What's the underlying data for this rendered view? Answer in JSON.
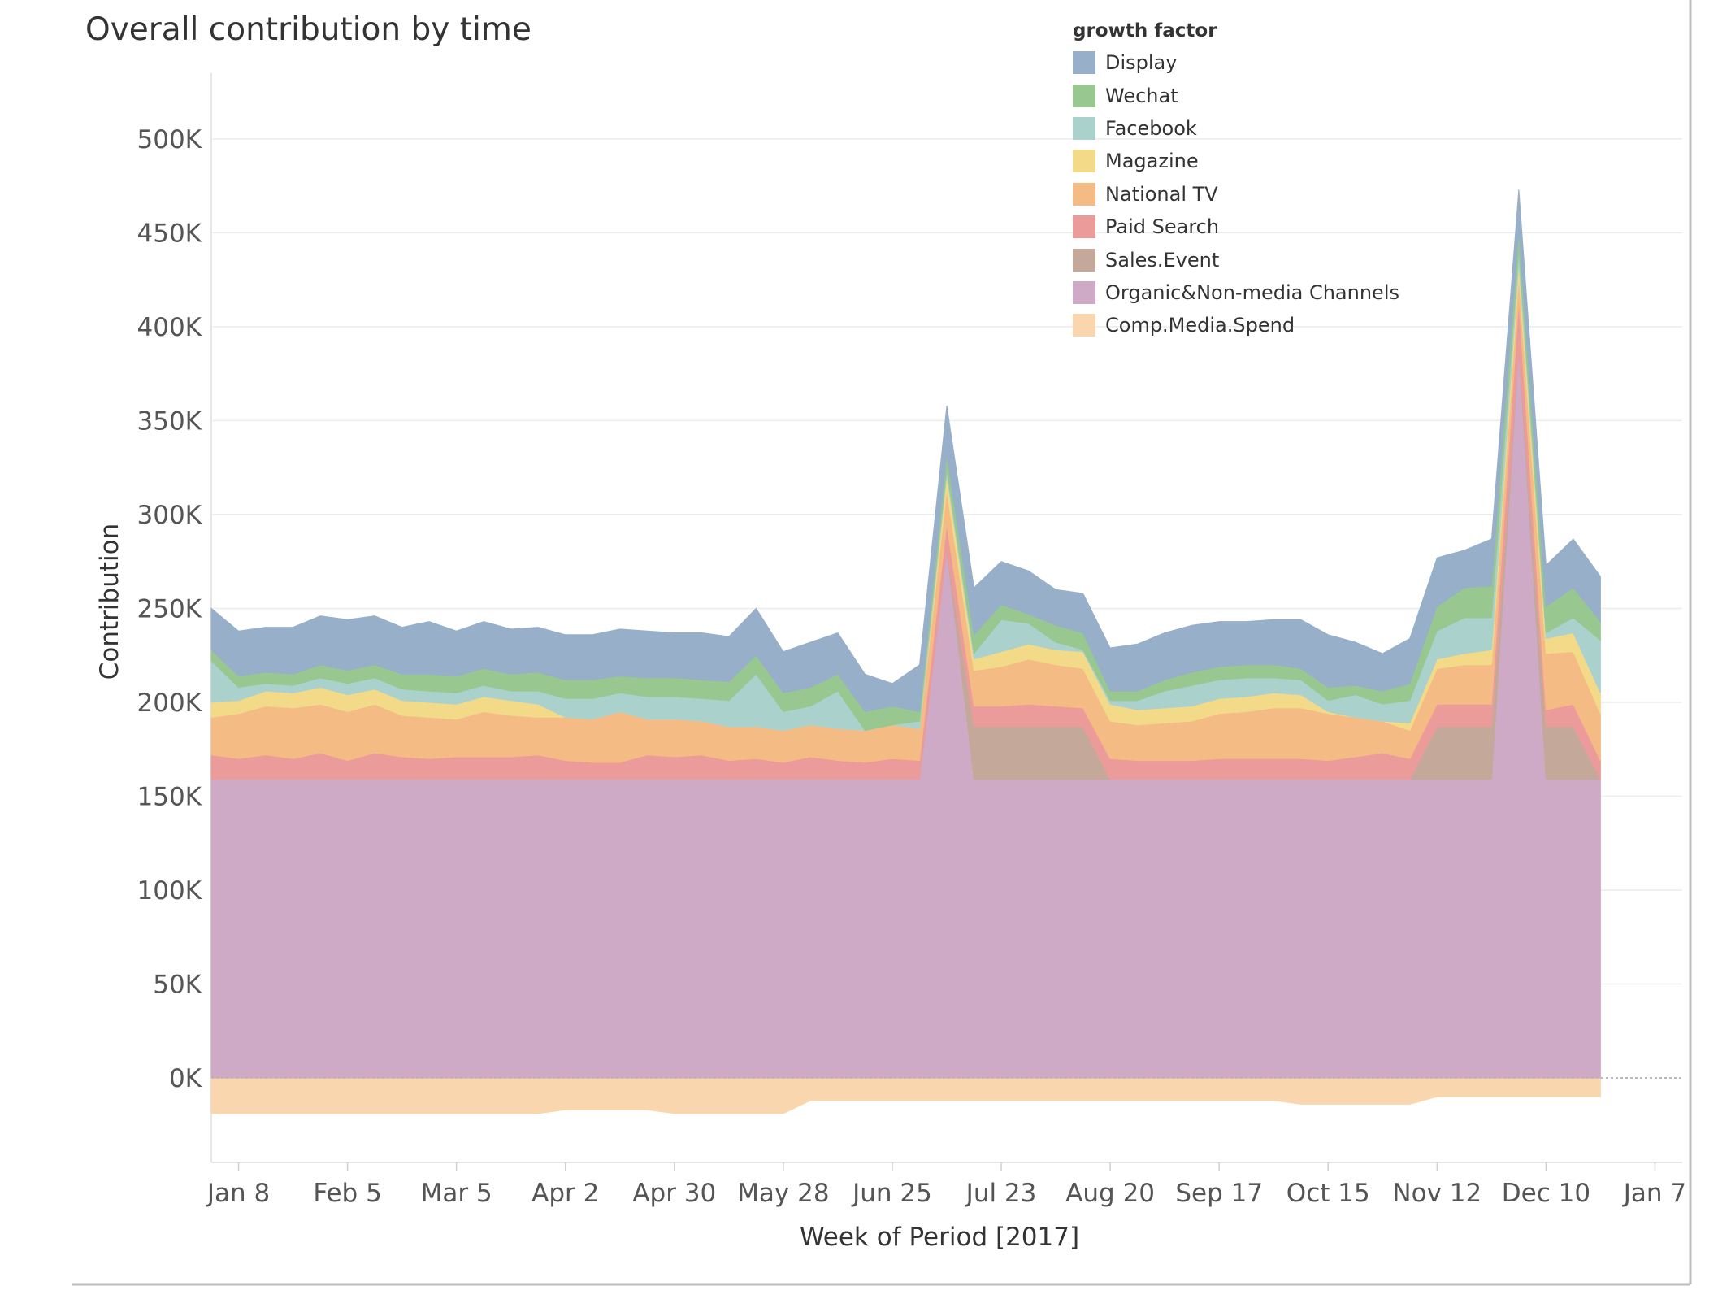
{
  "chart_data": {
    "type": "area",
    "stacked": true,
    "title": "Overall contribution by time",
    "xlabel": "Week of Period [2017]",
    "ylabel": "Contribution",
    "ylim": [
      -45000,
      535000
    ],
    "grid": true,
    "legend": {
      "title": "growth factor",
      "placement": "top-right"
    },
    "x_tick_labels": [
      "Jan 8",
      "Feb 5",
      "Mar 5",
      "Apr 2",
      "Apr 30",
      "May 28",
      "Jun 25",
      "Jul 23",
      "Aug 20",
      "Sep 17",
      "Oct 15",
      "Nov 12",
      "Dec 10",
      "Jan 7"
    ],
    "y_tick_labels": [
      "0K",
      "50K",
      "100K",
      "150K",
      "200K",
      "250K",
      "300K",
      "350K",
      "400K",
      "450K",
      "500K"
    ],
    "y_tick_values": [
      0,
      50000,
      100000,
      150000,
      200000,
      250000,
      300000,
      350000,
      400000,
      450000,
      500000
    ],
    "x": [
      "2017-01-01",
      "2017-01-08",
      "2017-01-15",
      "2017-01-22",
      "2017-01-29",
      "2017-02-05",
      "2017-02-12",
      "2017-02-19",
      "2017-02-26",
      "2017-03-05",
      "2017-03-12",
      "2017-03-19",
      "2017-03-26",
      "2017-04-02",
      "2017-04-09",
      "2017-04-16",
      "2017-04-23",
      "2017-04-30",
      "2017-05-07",
      "2017-05-14",
      "2017-05-21",
      "2017-05-28",
      "2017-06-04",
      "2017-06-11",
      "2017-06-18",
      "2017-06-25",
      "2017-07-02",
      "2017-07-09",
      "2017-07-16",
      "2017-07-23",
      "2017-07-30",
      "2017-08-06",
      "2017-08-13",
      "2017-08-20",
      "2017-08-27",
      "2017-09-03",
      "2017-09-10",
      "2017-09-17",
      "2017-09-24",
      "2017-10-01",
      "2017-10-08",
      "2017-10-15",
      "2017-10-22",
      "2017-10-29",
      "2017-11-05",
      "2017-11-12",
      "2017-11-19",
      "2017-11-26",
      "2017-12-03",
      "2017-12-10",
      "2017-12-17",
      "2017-12-24"
    ],
    "series": [
      {
        "name": "Comp.Media.Spend",
        "color": "#f9d6ae",
        "values": [
          -19000,
          -19000,
          -19000,
          -19000,
          -19000,
          -19000,
          -19000,
          -19000,
          -19000,
          -19000,
          -19000,
          -19000,
          -19000,
          -17000,
          -17000,
          -17000,
          -17000,
          -19000,
          -19000,
          -19000,
          -19000,
          -19000,
          -12000,
          -12000,
          -12000,
          -12000,
          -12000,
          -12000,
          -12000,
          -12000,
          -12000,
          -12000,
          -12000,
          -12000,
          -12000,
          -12000,
          -12000,
          -12000,
          -12000,
          -12000,
          -14000,
          -14000,
          -14000,
          -14000,
          -14000,
          -10000,
          -10000,
          -10000,
          -10000,
          -10000,
          -10000,
          -10000
        ]
      },
      {
        "name": "Organic&Non-media Channels",
        "color": "#cfaac6",
        "values": [
          159000,
          159000,
          159000,
          159000,
          159000,
          159000,
          159000,
          159000,
          159000,
          159000,
          159000,
          159000,
          159000,
          159000,
          159000,
          159000,
          159000,
          159000,
          159000,
          159000,
          159000,
          159000,
          159000,
          159000,
          159000,
          159000,
          159000,
          281000,
          159000,
          159000,
          159000,
          159000,
          159000,
          159000,
          159000,
          159000,
          159000,
          159000,
          159000,
          159000,
          159000,
          159000,
          159000,
          159000,
          159000,
          159000,
          159000,
          159000,
          388000,
          159000,
          159000,
          159000
        ]
      },
      {
        "name": "Sales.Event",
        "color": "#c4a99b",
        "values": [
          0,
          0,
          0,
          0,
          0,
          0,
          0,
          0,
          0,
          0,
          0,
          0,
          0,
          0,
          0,
          0,
          0,
          0,
          0,
          0,
          0,
          0,
          0,
          0,
          0,
          0,
          0,
          0,
          28000,
          28000,
          28000,
          28000,
          28000,
          0,
          0,
          0,
          0,
          0,
          0,
          0,
          0,
          0,
          0,
          0,
          0,
          28000,
          28000,
          28000,
          0,
          28000,
          28000,
          0
        ]
      },
      {
        "name": "Paid Search",
        "color": "#eb9b9a",
        "values": [
          13000,
          11000,
          13000,
          11000,
          14000,
          10000,
          14000,
          12000,
          11000,
          12000,
          12000,
          12000,
          13000,
          10000,
          9000,
          9000,
          13000,
          12000,
          13000,
          10000,
          11000,
          9000,
          12000,
          10000,
          9000,
          11000,
          10000,
          14000,
          11000,
          11000,
          12000,
          11000,
          10000,
          11000,
          10000,
          10000,
          10000,
          11000,
          11000,
          11000,
          11000,
          10000,
          12000,
          14000,
          11000,
          12000,
          12000,
          12000,
          26000,
          9000,
          12000,
          10000
        ]
      },
      {
        "name": "National TV",
        "color": "#f5bb84",
        "values": [
          20000,
          24000,
          26000,
          27000,
          26000,
          26000,
          26000,
          22000,
          22000,
          20000,
          24000,
          22000,
          20000,
          23000,
          23000,
          27000,
          19000,
          20000,
          18000,
          18000,
          17000,
          17000,
          17000,
          17000,
          17000,
          18000,
          17000,
          18000,
          19000,
          21000,
          24000,
          22000,
          21000,
          20000,
          19000,
          20000,
          21000,
          24000,
          25000,
          27000,
          27000,
          25000,
          21000,
          17000,
          15000,
          19000,
          21000,
          21000,
          13000,
          30000,
          28000,
          25000
        ]
      },
      {
        "name": "Magazine",
        "color": "#f2da88",
        "values": [
          8000,
          7000,
          8000,
          8000,
          9000,
          9000,
          8000,
          8000,
          8000,
          8000,
          8000,
          8000,
          7000,
          0,
          0,
          0,
          0,
          0,
          0,
          0,
          0,
          0,
          0,
          0,
          0,
          0,
          0,
          8000,
          6000,
          8000,
          8000,
          8000,
          9000,
          9000,
          8000,
          8000,
          8000,
          8000,
          8000,
          8000,
          7000,
          1000,
          0,
          0,
          4000,
          5000,
          6000,
          8000,
          7000,
          8000,
          10000,
          11000
        ]
      },
      {
        "name": "Facebook",
        "color": "#abd1cd",
        "values": [
          22000,
          7000,
          4000,
          4000,
          5000,
          6000,
          6000,
          6000,
          6000,
          6000,
          6000,
          5000,
          7000,
          10000,
          11000,
          10000,
          12000,
          12000,
          12000,
          14000,
          28000,
          10000,
          10000,
          20000,
          0,
          0,
          4000,
          3000,
          3000,
          17000,
          11000,
          4000,
          1000,
          2000,
          5000,
          9000,
          11000,
          10000,
          10000,
          8000,
          8000,
          6000,
          12000,
          9000,
          12000,
          15000,
          19000,
          17000,
          7000,
          3000,
          8000,
          28000
        ]
      },
      {
        "name": "Wechat",
        "color": "#98c890",
        "values": [
          6000,
          6000,
          6000,
          6000,
          7000,
          7000,
          7000,
          8000,
          9000,
          9000,
          9000,
          9000,
          10000,
          10000,
          10000,
          9000,
          10000,
          10000,
          10000,
          10000,
          10000,
          10000,
          10000,
          9000,
          10000,
          10000,
          5000,
          8000,
          10000,
          8000,
          5000,
          9000,
          9000,
          5000,
          5000,
          6000,
          7000,
          7000,
          7000,
          7000,
          6000,
          7000,
          5000,
          7000,
          9000,
          13000,
          16000,
          17000,
          10000,
          14000,
          16000,
          10000
        ]
      },
      {
        "name": "Display",
        "color": "#97afc9",
        "values": [
          22000,
          24000,
          24000,
          25000,
          26000,
          27000,
          26000,
          25000,
          28000,
          24000,
          25000,
          24000,
          24000,
          24000,
          24000,
          25000,
          25000,
          24000,
          25000,
          24000,
          25000,
          22000,
          24000,
          22000,
          20000,
          12000,
          25000,
          26000,
          25000,
          23000,
          23000,
          19000,
          21000,
          23000,
          25000,
          25000,
          25000,
          24000,
          23000,
          24000,
          26000,
          28000,
          23000,
          20000,
          24000,
          26000,
          20000,
          25000,
          22000,
          22000,
          26000,
          24000
        ]
      }
    ]
  }
}
